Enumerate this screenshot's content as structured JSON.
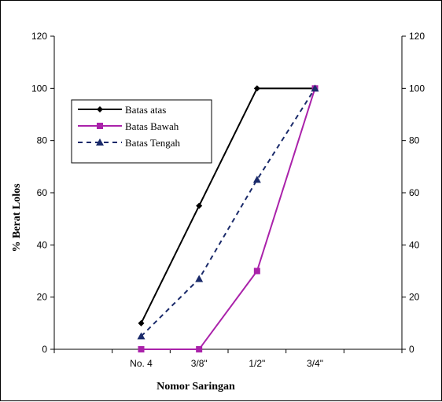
{
  "chart_data": {
    "type": "line",
    "categories": [
      "No. 4",
      "3/8\"",
      "1/2\"",
      "3/4\""
    ],
    "xlabel": "Nomor Saringan",
    "ylabel": "% Berat Lolos",
    "ylim": [
      0,
      120
    ],
    "yticks": [
      "0",
      "20",
      "40",
      "60",
      "80",
      "100",
      "120"
    ],
    "grid": false,
    "legend_position": "upper-left",
    "series": [
      {
        "name": "Batas atas",
        "values": [
          10,
          55,
          100,
          100
        ],
        "color": "#000000",
        "marker": "diamond",
        "line_style": "solid"
      },
      {
        "name": "Batas Bawah",
        "values": [
          0,
          0,
          30,
          100
        ],
        "color": "#aa22aa",
        "marker": "square",
        "line_style": "solid"
      },
      {
        "name": "Batas Tengah",
        "values": [
          5,
          27,
          65,
          100
        ],
        "color": "#1a2a6a",
        "marker": "triangle",
        "line_style": "dashed"
      }
    ]
  }
}
